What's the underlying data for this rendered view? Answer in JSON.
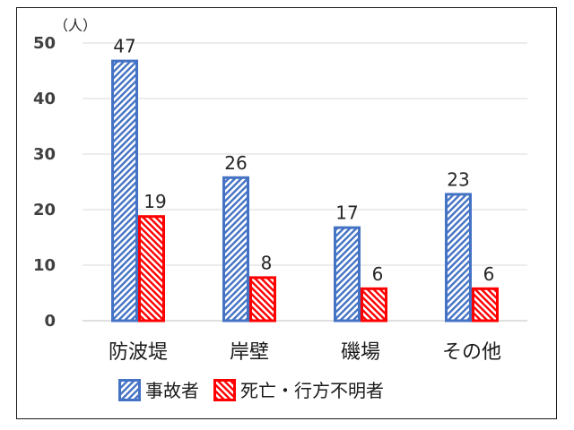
{
  "chart_data": {
    "type": "bar",
    "unit_label": "（人）",
    "categories": [
      "防波堤",
      "岸壁",
      "磯場",
      "その他"
    ],
    "series": [
      {
        "name": "事故者",
        "values": [
          47,
          26,
          17,
          23
        ],
        "color": "#4472c4",
        "pattern": "diagonal-stripes"
      },
      {
        "name": "死亡・行方不明者",
        "values": [
          19,
          8,
          6,
          6
        ],
        "color": "#ff0000",
        "pattern": "diagonal-stripes"
      }
    ],
    "ylim": [
      0,
      50
    ],
    "yticks": [
      0,
      10,
      20,
      30,
      40,
      50
    ],
    "grid": true,
    "legend_position": "bottom"
  }
}
